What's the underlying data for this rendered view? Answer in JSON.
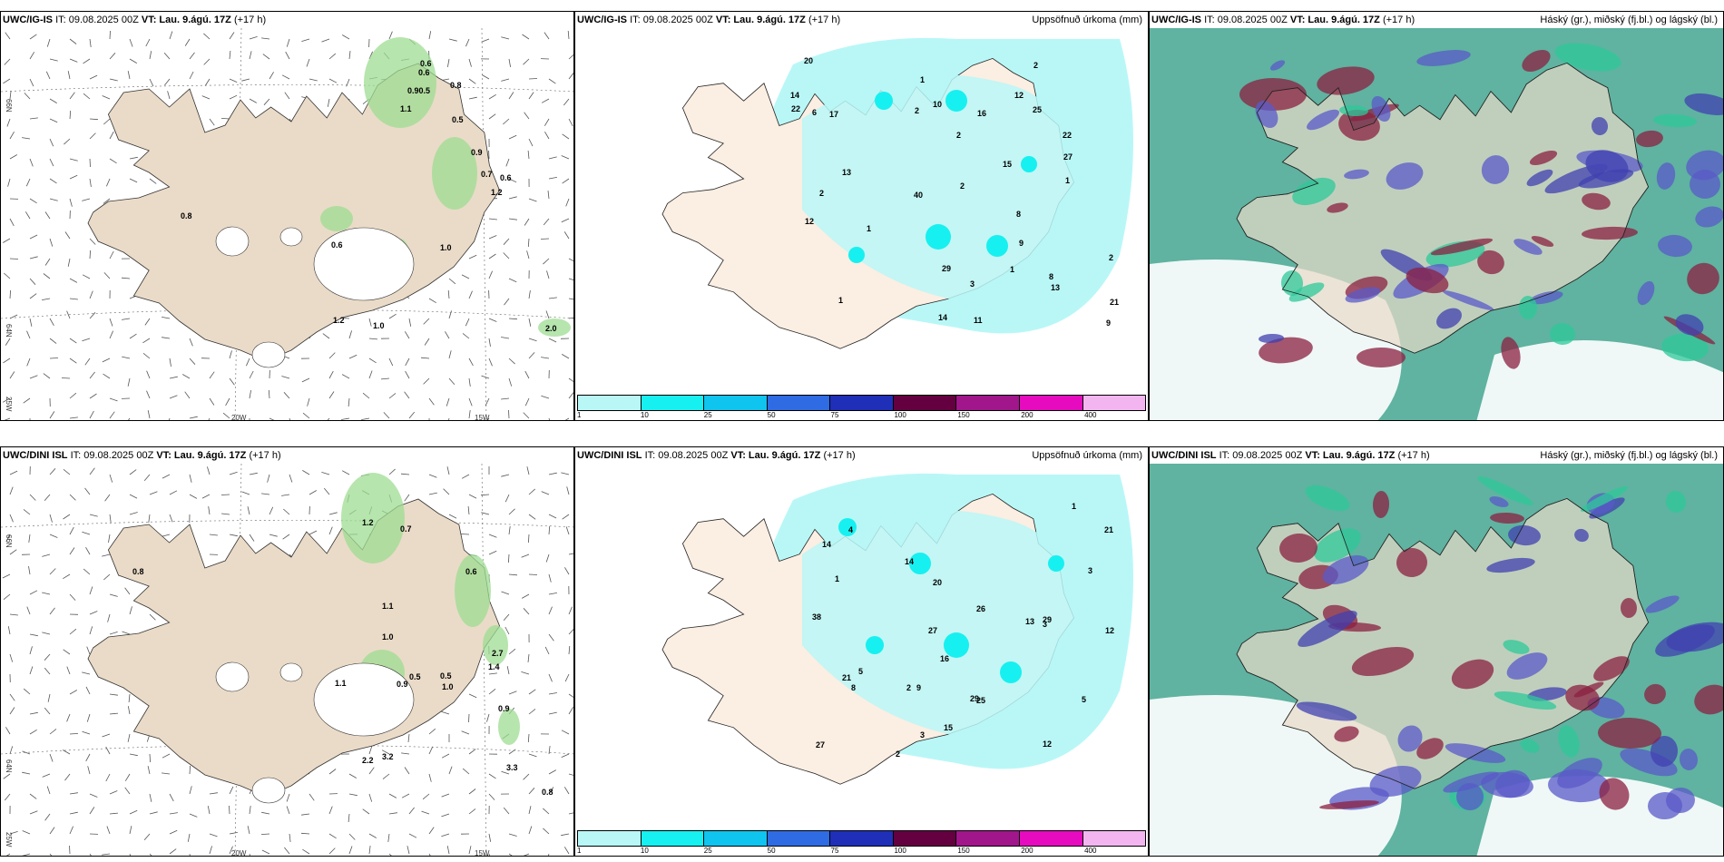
{
  "rows": [
    {
      "model": "UWC/IG-IS",
      "it_label": "IT: 09.08.2025 00Z",
      "vt_label": "VT: Lau. 9.ágú. 17Z",
      "lead": "(+17 h)",
      "wind_values": [
        "0.6",
        "0.6",
        "0.8",
        "0.90.5",
        "1.1",
        "0.5",
        "0.9",
        "0.7",
        "0.6",
        "1.2",
        "0.8",
        "0.6",
        "1.0",
        "1.2",
        "1.0",
        "2.0"
      ],
      "precip_values": [
        "2",
        "13",
        "14",
        "22",
        "14",
        "10",
        "11",
        "12",
        "13",
        "12",
        "8",
        "16",
        "8",
        "6",
        "21",
        "25",
        "2",
        "1",
        "3",
        "9",
        "22",
        "29",
        "15",
        "40",
        "27",
        "17",
        "20",
        "9",
        "2",
        "1",
        "1",
        "2",
        "2",
        "1",
        "1",
        "2"
      ]
    },
    {
      "model": "UWC/DINI ISL",
      "it_label": "IT: 09.08.2025 00Z",
      "vt_label": "VT: Lau. 9.ágú. 17Z",
      "lead": "(+17 h)",
      "wind_values": [
        "1.2",
        "0.7",
        "0.8",
        "0.6",
        "1.1",
        "1.0",
        "2.7",
        "1.4",
        "1.1",
        "0.5",
        "0.5",
        "0.9",
        "1.0",
        "0.9",
        "2.2",
        "3.2",
        "3.3",
        "0.8"
      ],
      "precip_values": [
        "13",
        "12",
        "29",
        "16",
        "15",
        "14",
        "27",
        "21",
        "9",
        "12",
        "8",
        "4",
        "2",
        "3",
        "27",
        "21",
        "25",
        "20",
        "38",
        "26",
        "29",
        "14",
        "5",
        "3",
        "2",
        "5",
        "3",
        "1",
        "1"
      ]
    }
  ],
  "precip_title": "Uppsöfnuð úrkoma (mm)",
  "cloud_title": "Háský (gr.), miðský (fj.bl.) og lágský (bl.)",
  "colorbar": {
    "ticks": [
      "1",
      "10",
      "25",
      "50",
      "75",
      "100",
      "150",
      "200",
      "400"
    ],
    "colors": [
      "#b9f7f7",
      "#17f0f0",
      "#0fc4ee",
      "#2f6be3",
      "#1f2fb8",
      "#640040",
      "#a1168b",
      "#e60bbf",
      "#f3b5f0"
    ]
  },
  "axis_labels": {
    "lon_left": "20W",
    "lon_right": "15W",
    "lat_66": "66N",
    "lat_64": "64N",
    "lon_25": "25W"
  }
}
